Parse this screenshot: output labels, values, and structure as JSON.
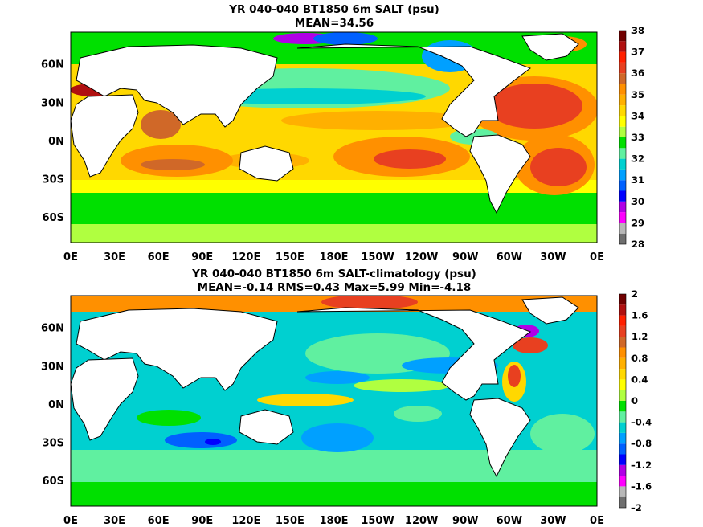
{
  "chart_data": [
    {
      "type": "heatmap",
      "title": "YR 040-040 BT1850 6m SALT (psu)",
      "subtitle": "MEAN=34.56",
      "x_ticks": [
        "0E",
        "30E",
        "60E",
        "90E",
        "120E",
        "150E",
        "180E",
        "150W",
        "120W",
        "90W",
        "60W",
        "30W",
        "0E"
      ],
      "x_range": [
        0,
        360
      ],
      "y_ticks": [
        "60N",
        "30N",
        "0N",
        "30S",
        "60S"
      ],
      "y_tick_values": [
        60,
        30,
        0,
        -30,
        -60
      ],
      "y_range": [
        -80,
        85
      ],
      "colorbar": {
        "ticks": [
          "38",
          "37",
          "36",
          "35",
          "34",
          "33",
          "32",
          "31",
          "30",
          "29",
          "28"
        ],
        "tick_values": [
          38,
          37,
          36,
          35,
          34,
          33,
          32,
          31,
          30,
          29,
          28
        ],
        "colors": [
          "#6f6f6f",
          "#b8b8b8",
          "#ff00ff",
          "#b000e6",
          "#0000ff",
          "#0060ff",
          "#00a0ff",
          "#00d0d0",
          "#60f0a0",
          "#00e000",
          "#b0ff40",
          "#ffff00",
          "#ffd800",
          "#ffb000",
          "#ff9000",
          "#d06828",
          "#e84020",
          "#ff2000",
          "#b01010",
          "#700000"
        ]
      }
    },
    {
      "type": "heatmap",
      "title": "YR 040-040 BT1850 6m SALT-climatology (psu)",
      "subtitle": "MEAN=-0.14   RMS=0.43   Max=5.99   Min=-4.18",
      "x_ticks": [
        "0E",
        "30E",
        "60E",
        "90E",
        "120E",
        "150E",
        "180E",
        "150W",
        "120W",
        "90W",
        "60W",
        "30W",
        "0E"
      ],
      "x_range": [
        0,
        360
      ],
      "y_ticks": [
        "60N",
        "30N",
        "0N",
        "30S",
        "60S"
      ],
      "y_tick_values": [
        60,
        30,
        0,
        -30,
        -60
      ],
      "y_range": [
        -80,
        85
      ],
      "colorbar": {
        "ticks": [
          "2",
          "1.6",
          "1.2",
          "0.8",
          "0.4",
          "0",
          "-0.4",
          "-0.8",
          "-1.2",
          "-1.6",
          "-2"
        ],
        "tick_values": [
          2,
          1.6,
          1.2,
          0.8,
          0.4,
          0,
          -0.4,
          -0.8,
          -1.2,
          -1.6,
          -2
        ],
        "colors": [
          "#6f6f6f",
          "#b8b8b8",
          "#ff00ff",
          "#b000e6",
          "#0000ff",
          "#0060ff",
          "#00a0ff",
          "#00d0d0",
          "#60f0a0",
          "#00e000",
          "#b0ff40",
          "#ffff00",
          "#ffd800",
          "#ffb000",
          "#ff9000",
          "#d06828",
          "#e84020",
          "#ff2000",
          "#b01010",
          "#700000"
        ]
      }
    }
  ]
}
